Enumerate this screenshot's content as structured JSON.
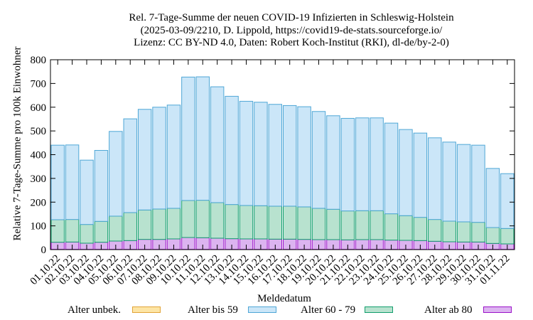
{
  "chart_data": {
    "type": "bar",
    "title": [
      "Rel. 7-Tage-Summe der neuen COVID-19 Infizierten in Schleswig-Holstein",
      "(2025-03-09/2210, D. Lippold, https://covid19-de-stats.sourceforge.io/",
      "Lizenz: CC BY-ND 4.0, Daten: Robert Koch-Institut (RKI), dl-de/by-2-0)"
    ],
    "xlabel": "Meldedatum",
    "ylabel": "Relative 7-Tage-Summe pro 100k Einwohner",
    "ylim": [
      0,
      800
    ],
    "yticks": [
      0,
      100,
      200,
      300,
      400,
      500,
      600,
      700,
      800
    ],
    "stacked": true,
    "categories": [
      "01.10.22",
      "02.10.22",
      "03.10.22",
      "04.10.22",
      "05.10.22",
      "06.10.22",
      "07.10.22",
      "08.10.22",
      "09.10.22",
      "10.10.22",
      "11.10.22",
      "12.10.22",
      "13.10.22",
      "14.10.22",
      "15.10.22",
      "16.10.22",
      "17.10.22",
      "18.10.22",
      "19.10.22",
      "20.10.22",
      "21.10.22",
      "22.10.22",
      "23.10.22",
      "24.10.22",
      "25.10.22",
      "26.10.22",
      "27.10.22",
      "28.10.22",
      "29.10.22",
      "30.10.22",
      "31.10.22",
      "01.11.22"
    ],
    "totals": [
      440,
      441,
      377,
      418,
      498,
      551,
      591,
      600,
      609,
      727,
      728,
      686,
      646,
      625,
      621,
      612,
      607,
      602,
      582,
      564,
      553,
      555,
      555,
      533,
      506,
      491,
      471,
      453,
      443,
      440,
      342,
      320
    ],
    "series": [
      {
        "name": "Alter unbek.",
        "fill": "#fde5a5",
        "stroke": "#e2a438",
        "values": [
          1,
          1,
          1,
          1,
          1,
          1,
          1,
          1,
          1,
          1,
          1,
          1,
          1,
          1,
          1,
          1,
          1,
          1,
          1,
          1,
          1,
          1,
          1,
          1,
          1,
          1,
          1,
          1,
          1,
          1,
          1,
          1
        ]
      },
      {
        "name": "Alter ab 80",
        "fill": "#dcb4f0",
        "stroke": "#9b13c9",
        "values": [
          30,
          31,
          26,
          30,
          35,
          37,
          42,
          42,
          44,
          50,
          49,
          47,
          45,
          44,
          44,
          43,
          43,
          42,
          41,
          41,
          40,
          41,
          41,
          39,
          38,
          37,
          34,
          32,
          31,
          31,
          25,
          23
        ]
      },
      {
        "name": "Alter 60 - 79",
        "fill": "#b8e2cf",
        "stroke": "#119e6d",
        "values": [
          95,
          95,
          79,
          88,
          105,
          118,
          124,
          128,
          129,
          156,
          158,
          150,
          144,
          141,
          140,
          139,
          139,
          137,
          132,
          128,
          122,
          122,
          122,
          111,
          104,
          98,
          92,
          87,
          85,
          83,
          67,
          65
        ]
      },
      {
        "name": "Alter bis 59",
        "fill": "#cbe6f8",
        "stroke": "#4fa7d6",
        "values": [
          314,
          314,
          271,
          299,
          357,
          395,
          424,
          429,
          435,
          520,
          520,
          488,
          456,
          439,
          436,
          429,
          424,
          422,
          408,
          394,
          390,
          391,
          391,
          382,
          363,
          355,
          344,
          333,
          326,
          325,
          249,
          231
        ]
      }
    ],
    "legend": [
      {
        "label": "Alter unbek.",
        "fill": "#fde5a5",
        "stroke": "#e2a438"
      },
      {
        "label": "Alter bis 59",
        "fill": "#cbe6f8",
        "stroke": "#4fa7d6"
      },
      {
        "label": "Alter 60 - 79",
        "fill": "#b8e2cf",
        "stroke": "#119e6d"
      },
      {
        "label": "Alter ab 80",
        "fill": "#dcb4f0",
        "stroke": "#9b13c9"
      }
    ],
    "legend_position": "bottom",
    "grid": false
  }
}
